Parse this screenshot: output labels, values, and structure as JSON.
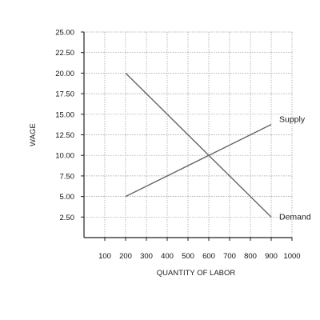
{
  "chart_data": {
    "type": "line",
    "title": "",
    "xlabel": "QUANTITY OF LABOR",
    "ylabel": "WAGE",
    "xlim": [
      0,
      1000
    ],
    "ylim": [
      0,
      25
    ],
    "x_ticks": [
      100,
      200,
      300,
      400,
      500,
      600,
      700,
      800,
      900,
      1000
    ],
    "y_ticks": [
      "25.00",
      "22.50",
      "20.00",
      "17.50",
      "15.00",
      "12.50",
      "10.00",
      "7.50",
      "5.00",
      "2.50"
    ],
    "grid": true,
    "series": [
      {
        "name": "Supply",
        "points": [
          [
            200,
            5.0
          ],
          [
            600,
            10.0
          ],
          [
            900,
            13.75
          ]
        ]
      },
      {
        "name": "Demand",
        "points": [
          [
            200,
            20.0
          ],
          [
            600,
            10.0
          ],
          [
            900,
            2.5
          ]
        ]
      }
    ],
    "colors": {
      "line": "#666666",
      "grid": "#9a9a9a",
      "axis": "#222222"
    }
  }
}
